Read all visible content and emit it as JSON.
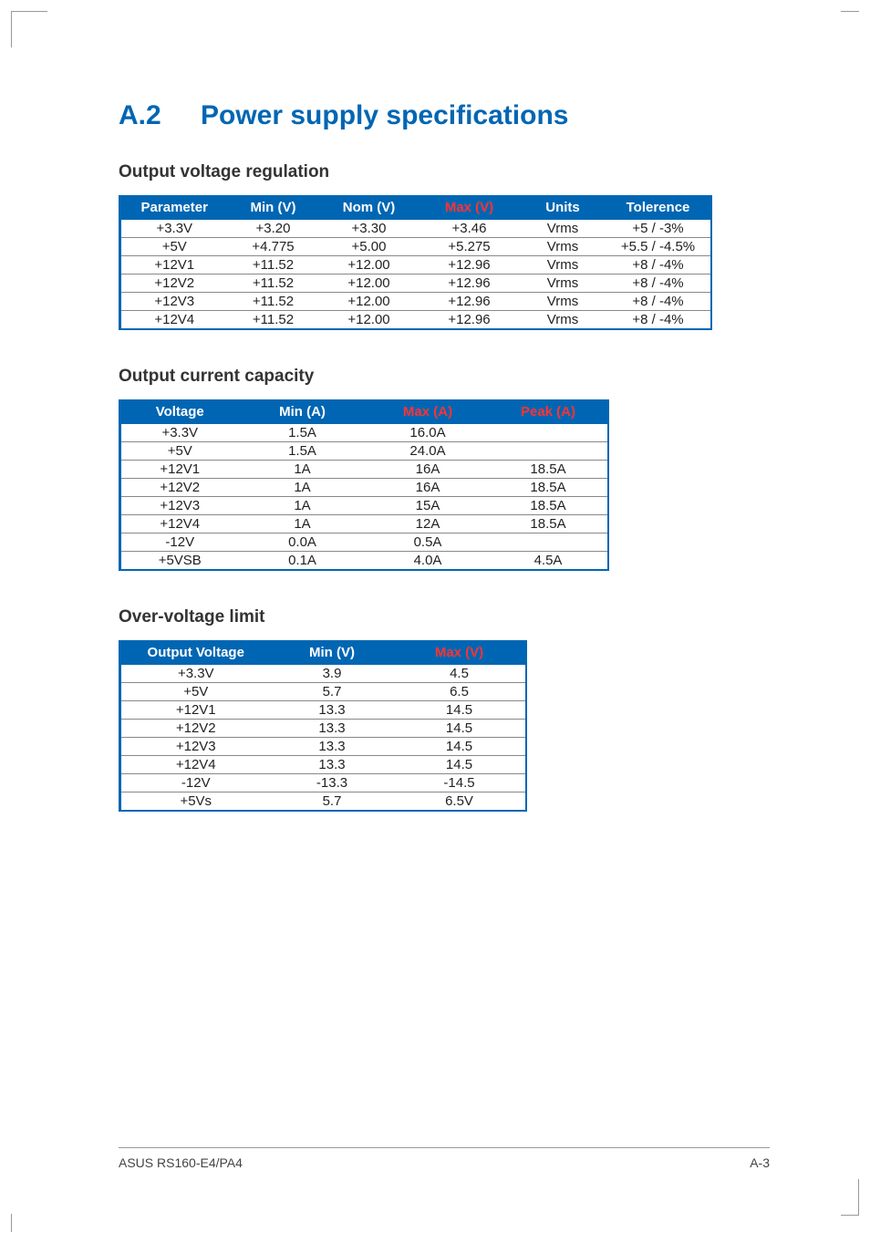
{
  "colors": {
    "accent": "#0066b3",
    "header_max": "#ff3333",
    "border": "#888888",
    "text": "#222222",
    "background": "#ffffff"
  },
  "typography": {
    "h1_fontsize": 30,
    "h2_fontsize": 19,
    "table_fontsize": 15,
    "footer_fontsize": 14
  },
  "heading": {
    "number": "A.2",
    "title": "Power supply specifications"
  },
  "sections": {
    "voltage_reg": {
      "title": "Output voltage regulation",
      "columns": [
        "Parameter",
        "Min (V)",
        "Nom (V)",
        "Max (V)",
        "Units",
        "Tolerence"
      ],
      "rows": [
        [
          "+3.3V",
          "+3.20",
          "+3.30",
          "+3.46",
          "Vrms",
          "+5 / -3%"
        ],
        [
          "+5V",
          "+4.775",
          "+5.00",
          "+5.275",
          "Vrms",
          "+5.5 / -4.5%"
        ],
        [
          "+12V1",
          "+11.52",
          "+12.00",
          "+12.96",
          "Vrms",
          "+8 / -4%"
        ],
        [
          "+12V2",
          "+11.52",
          "+12.00",
          "+12.96",
          "Vrms",
          "+8 / -4%"
        ],
        [
          "+12V3",
          "+11.52",
          "+12.00",
          "+12.96",
          "Vrms",
          "+8 / -4%"
        ],
        [
          "+12V4",
          "+11.52",
          "+12.00",
          "+12.96",
          "Vrms",
          "+8 / -4%"
        ]
      ]
    },
    "current_cap": {
      "title": "Output current capacity",
      "columns": [
        "Voltage",
        "Min (A)",
        "Max (A)",
        "Peak (A)"
      ],
      "rows": [
        [
          "+3.3V",
          "1.5A",
          "16.0A",
          ""
        ],
        [
          "+5V",
          "1.5A",
          "24.0A",
          ""
        ],
        [
          "+12V1",
          "1A",
          "16A",
          "18.5A"
        ],
        [
          "+12V2",
          "1A",
          "16A",
          "18.5A"
        ],
        [
          "+12V3",
          "1A",
          "15A",
          "18.5A"
        ],
        [
          "+12V4",
          "1A",
          "12A",
          "18.5A"
        ],
        [
          "-12V",
          "0.0A",
          "0.5A",
          ""
        ],
        [
          "+5VSB",
          "0.1A",
          "4.0A",
          "4.5A"
        ]
      ]
    },
    "ov_limit": {
      "title": "Over-voltage limit",
      "columns": [
        "Output Voltage",
        "Min (V)",
        "Max (V)"
      ],
      "rows": [
        [
          "+3.3V",
          "3.9",
          "4.5"
        ],
        [
          "+5V",
          "5.7",
          "6.5"
        ],
        [
          "+12V1",
          "13.3",
          "14.5"
        ],
        [
          "+12V2",
          "13.3",
          "14.5"
        ],
        [
          "+12V3",
          "13.3",
          "14.5"
        ],
        [
          "+12V4",
          "13.3",
          "14.5"
        ],
        [
          "-12V",
          "-13.3",
          "-14.5"
        ],
        [
          "+5Vs",
          "5.7",
          "6.5V"
        ]
      ]
    }
  },
  "footer": {
    "left": "ASUS RS160-E4/PA4",
    "right": "A-3"
  }
}
